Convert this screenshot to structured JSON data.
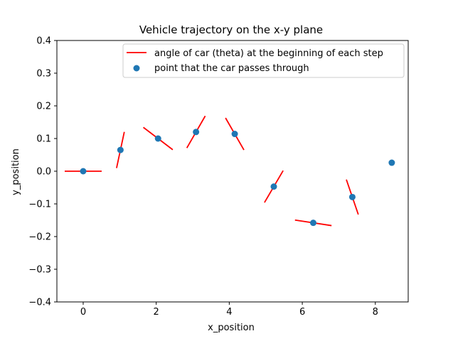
{
  "chart_data": {
    "type": "scatter",
    "title": "Vehicle trajectory on the x-y plane",
    "xlabel": "x_position",
    "ylabel": "y_position",
    "xlim": [
      -0.72,
      8.9
    ],
    "ylim": [
      -0.4,
      0.4
    ],
    "xticks": [
      0,
      2,
      4,
      6,
      8
    ],
    "yticks": [
      -0.4,
      -0.3,
      -0.2,
      -0.1,
      0.0,
      0.1,
      0.2,
      0.3,
      0.4
    ],
    "xtick_labels": [
      "0",
      "2",
      "4",
      "6",
      "8"
    ],
    "ytick_labels": [
      "−0.4",
      "−0.3",
      "−0.2",
      "−0.1",
      "0.0",
      "0.1",
      "0.2",
      "0.3",
      "0.4"
    ],
    "grid": false,
    "legend_position": "top-right",
    "series": [
      {
        "name": "angle of car (theta) at the beginning of each step",
        "kind": "heading-segments",
        "color": "#ff0000",
        "points": [
          {
            "x": 0.0,
            "y": 0.0,
            "theta": 0.0
          },
          {
            "x": 1.02,
            "y": 0.065,
            "theta": 1.36
          },
          {
            "x": 2.05,
            "y": 0.1,
            "theta": -0.65
          },
          {
            "x": 3.09,
            "y": 0.12,
            "theta": 1.05
          },
          {
            "x": 4.15,
            "y": 0.114,
            "theta": -1.05
          },
          {
            "x": 5.22,
            "y": -0.047,
            "theta": -2.1
          },
          {
            "x": 6.3,
            "y": -0.158,
            "theta": -0.15
          },
          {
            "x": 7.37,
            "y": -0.079,
            "theta": 1.9
          }
        ]
      },
      {
        "name": "point that the car passes through",
        "kind": "scatter",
        "color": "#1f77b4",
        "x": [
          0.0,
          1.02,
          2.05,
          3.09,
          4.15,
          5.22,
          6.3,
          7.37,
          8.45
        ],
        "y": [
          0.0,
          0.065,
          0.1,
          0.12,
          0.114,
          -0.047,
          -0.158,
          -0.079,
          0.026
        ]
      }
    ]
  }
}
